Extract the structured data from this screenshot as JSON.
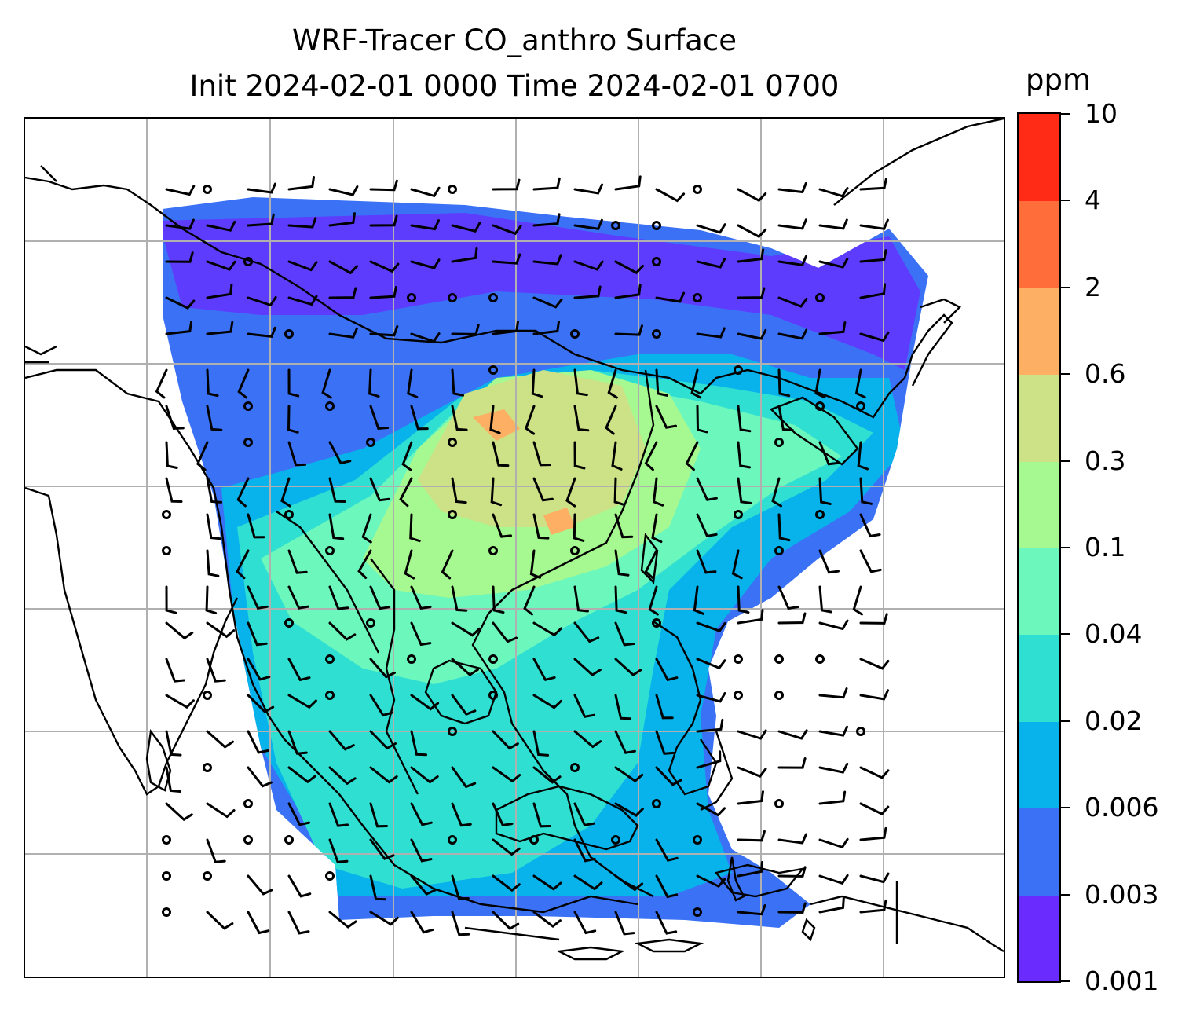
{
  "title": {
    "line1": "WRF-Tracer CO_anthro Surface",
    "line2": "Init 2024-02-01 0000 Time 2024-02-01 0700"
  },
  "colorbar": {
    "units": "ppm",
    "levels": [
      "0.001",
      "0.003",
      "0.006",
      "0.02",
      "0.04",
      "0.1",
      "0.3",
      "0.6",
      "2",
      "4",
      "10"
    ],
    "colors": [
      "#6a2bff",
      "#3b72f5",
      "#08b2ea",
      "#2fe0d2",
      "#6cf7bd",
      "#a6f990",
      "#cde187",
      "#fdaf63",
      "#ff6e3a",
      "#ff2b17"
    ]
  },
  "map": {
    "features": [
      "coastlines",
      "country-borders",
      "gridlines",
      "wind-barbs",
      "co-tracer-field"
    ],
    "gridline_color": "#b0b0b0"
  }
}
